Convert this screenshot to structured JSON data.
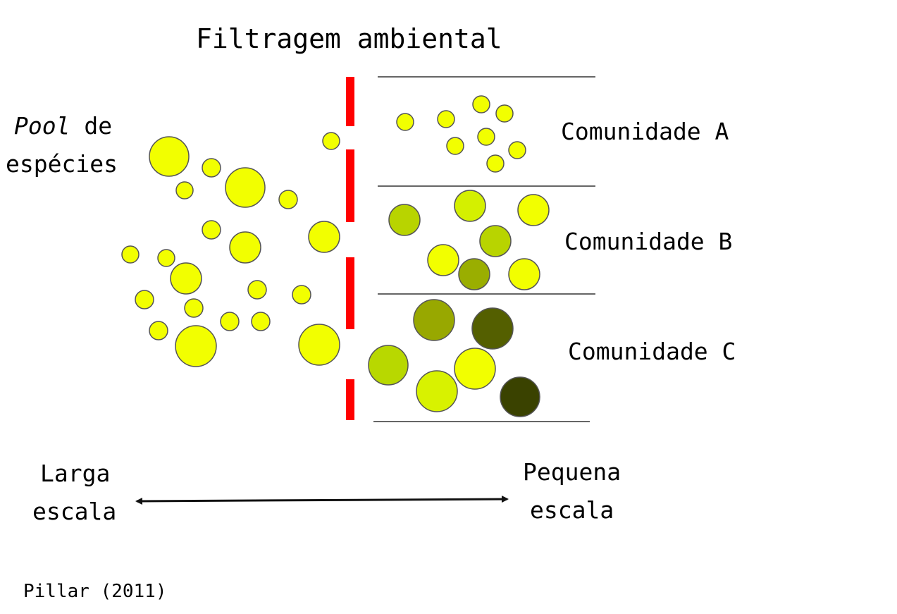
{
  "title": "Filtragem ambiental",
  "pool": {
    "italic_word": "Pool",
    "line1_rest": " de",
    "line2": "espécies"
  },
  "communities": {
    "a_label": "Comunidade A",
    "b_label": "Comunidade B",
    "c_label": "Comunidade C"
  },
  "scale": {
    "large_line1": "Larga",
    "large_line2": "escala",
    "small_line1": "Pequena",
    "small_line2": "escala"
  },
  "citation": "Pillar (2011)",
  "colors": {
    "species_base": "#f2ff00",
    "filter": "#ff0000",
    "lines": "#333333",
    "arrow": "#111111",
    "community_b_shades": [
      "#b8d400",
      "#d4f000",
      "#9aae00"
    ],
    "community_c_shades": [
      "#98a800",
      "#545f00",
      "#3a4200",
      "#b8d800",
      "#d8f200"
    ]
  }
}
